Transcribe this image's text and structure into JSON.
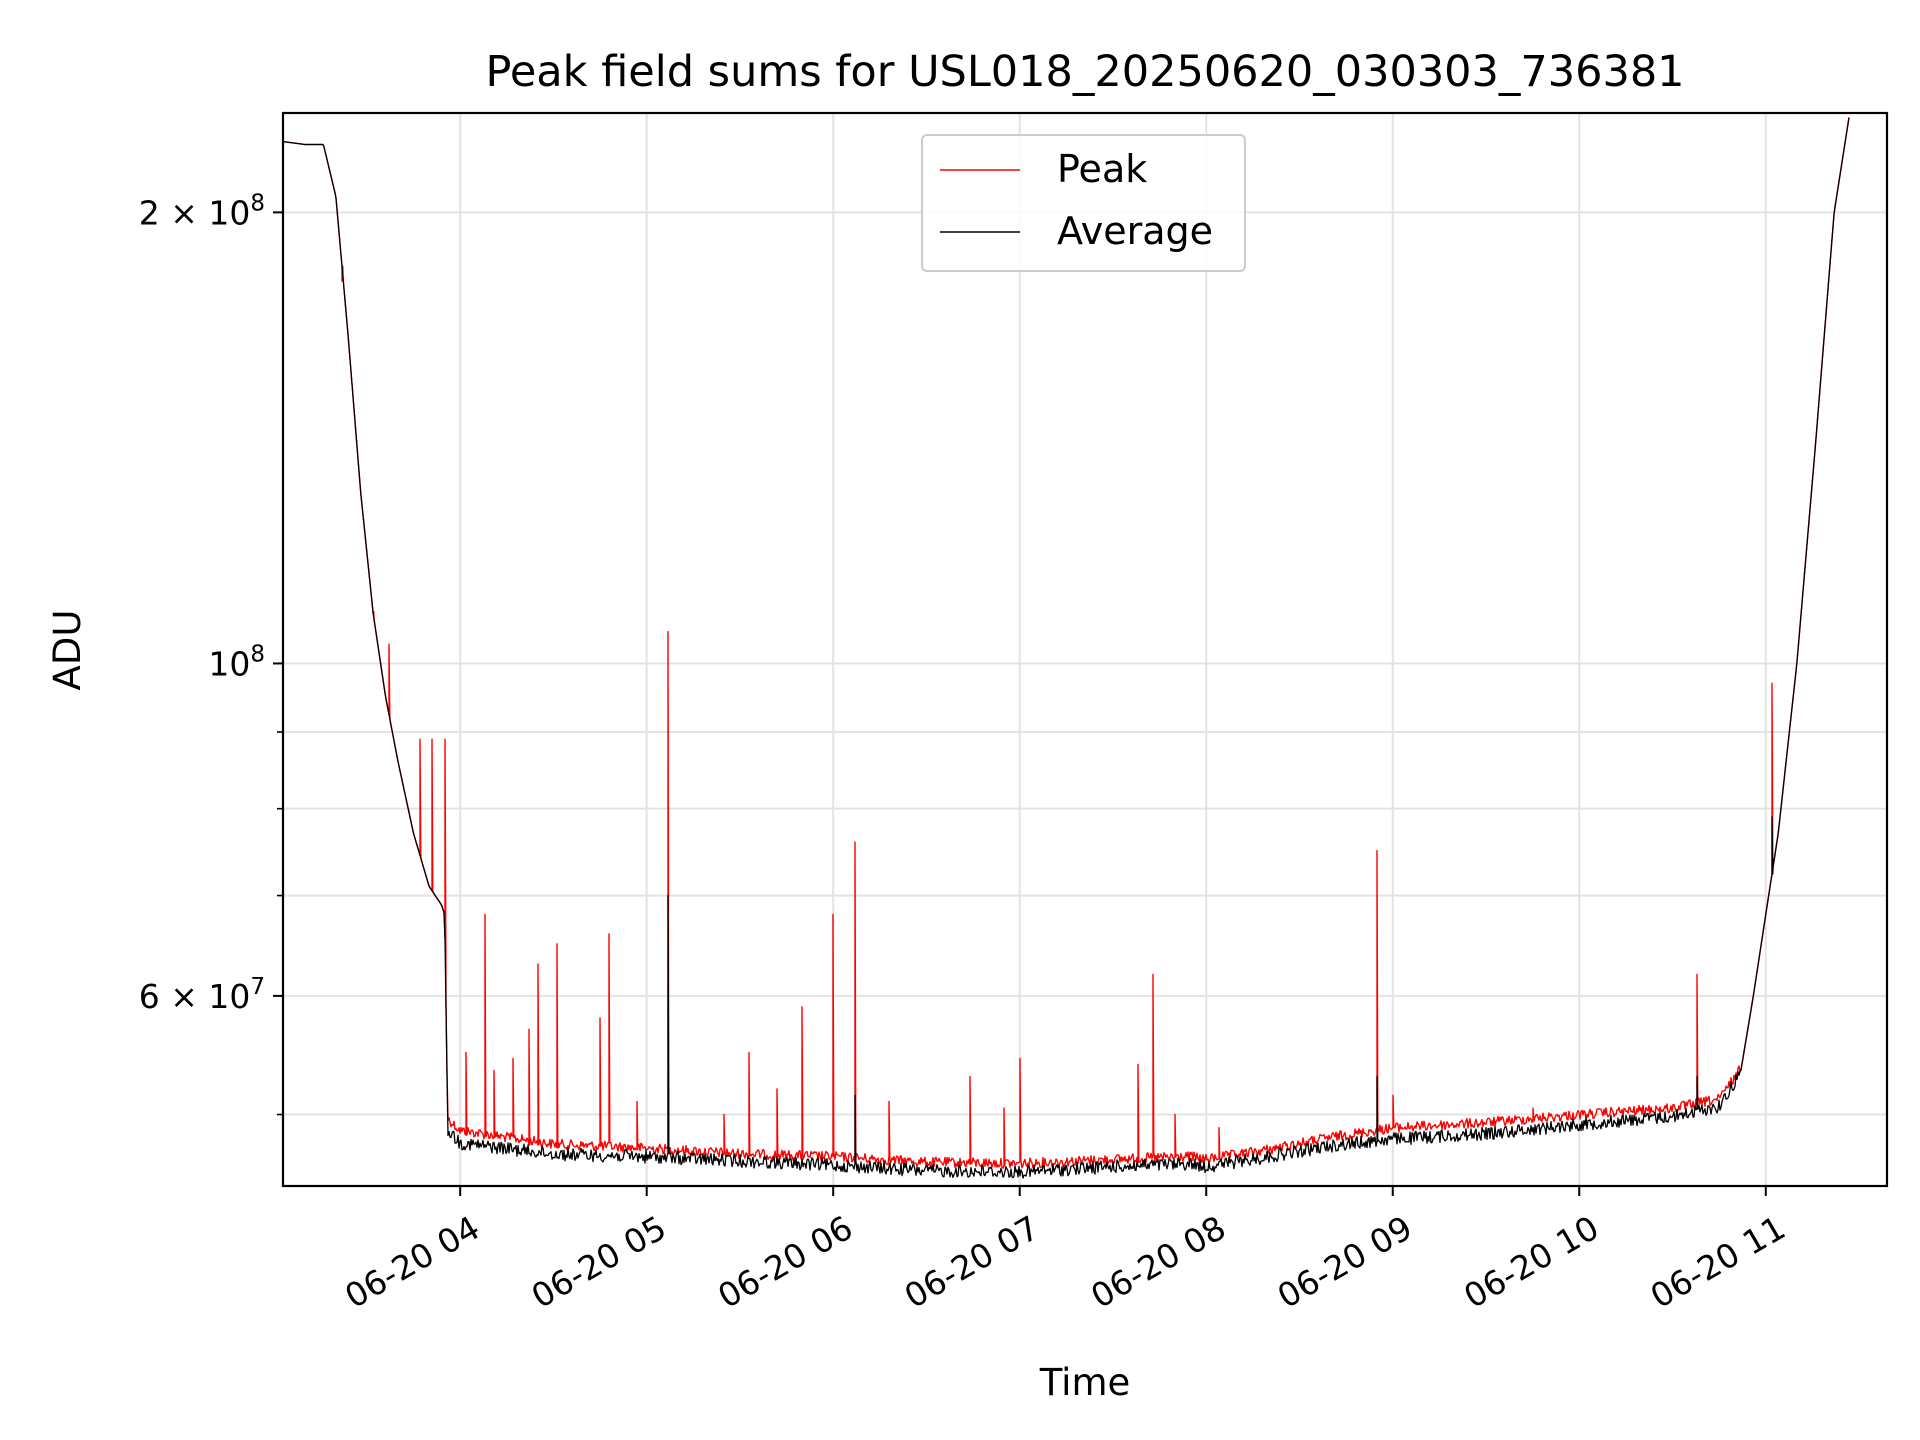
{
  "chart_data": {
    "type": "line",
    "title": "Peak field sums for USL018_20250620_030303_736381",
    "xlabel": "Time",
    "ylabel": "ADU",
    "xaxis": {
      "kind": "time",
      "start": "2025-06-20T03:03",
      "end": "2025-06-20T11:39",
      "ticks": [
        {
          "value": "2025-06-20T04:00",
          "label": "06-20 04"
        },
        {
          "value": "2025-06-20T05:00",
          "label": "06-20 05"
        },
        {
          "value": "2025-06-20T06:00",
          "label": "06-20 06"
        },
        {
          "value": "2025-06-20T07:00",
          "label": "06-20 07"
        },
        {
          "value": "2025-06-20T08:00",
          "label": "06-20 08"
        },
        {
          "value": "2025-06-20T09:00",
          "label": "06-20 09"
        },
        {
          "value": "2025-06-20T10:00",
          "label": "06-20 10"
        },
        {
          "value": "2025-06-20T11:00",
          "label": "06-20 11"
        }
      ]
    },
    "yaxis": {
      "scale": "log",
      "ylim": [
        44800000,
        233000000
      ],
      "major_ticks": [
        {
          "value": 60000000,
          "label": "6 × 10",
          "exp": "7"
        },
        {
          "value": 100000000,
          "label": "10",
          "exp": "8"
        },
        {
          "value": 200000000,
          "label": "2 × 10",
          "exp": "8"
        }
      ],
      "minor_ticks": [
        50000000,
        70000000,
        80000000,
        90000000
      ]
    },
    "grid": true,
    "legend": {
      "placement": "upper-center",
      "entries": [
        "Peak",
        "Average"
      ]
    },
    "series": [
      {
        "name": "Peak",
        "color": "#ff0000",
        "baseline": [
          [
            "2025-06-20T03:03",
            223000000
          ],
          [
            "2025-06-20T03:10",
            222000000
          ],
          [
            "2025-06-20T03:16",
            222000000
          ],
          [
            "2025-06-20T03:20",
            205000000
          ],
          [
            "2025-06-20T03:24",
            165000000
          ],
          [
            "2025-06-20T03:28",
            130000000
          ],
          [
            "2025-06-20T03:32",
            108000000
          ],
          [
            "2025-06-20T03:36",
            95000000
          ],
          [
            "2025-06-20T03:40",
            86000000
          ],
          [
            "2025-06-20T03:45",
            77000000
          ],
          [
            "2025-06-20T03:50",
            71000000
          ],
          [
            "2025-06-20T03:54",
            69000000
          ],
          [
            "2025-06-20T03:55",
            68000000
          ],
          [
            "2025-06-20T03:56",
            49500000
          ],
          [
            "2025-06-20T04:00",
            48600000
          ],
          [
            "2025-06-20T04:30",
            47600000
          ],
          [
            "2025-06-20T05:00",
            47300000
          ],
          [
            "2025-06-20T05:30",
            46900000
          ],
          [
            "2025-06-20T06:00",
            46700000
          ],
          [
            "2025-06-20T06:30",
            46300000
          ],
          [
            "2025-06-20T07:00",
            46200000
          ],
          [
            "2025-06-20T07:30",
            46500000
          ],
          [
            "2025-06-20T07:55",
            46700000
          ],
          [
            "2025-06-20T08:00",
            46500000
          ],
          [
            "2025-06-20T08:20",
            47200000
          ],
          [
            "2025-06-20T08:40",
            48100000
          ],
          [
            "2025-06-20T09:00",
            48800000
          ],
          [
            "2025-06-20T09:30",
            49200000
          ],
          [
            "2025-06-20T10:00",
            49800000
          ],
          [
            "2025-06-20T10:30",
            50300000
          ],
          [
            "2025-06-20T10:45",
            51000000
          ],
          [
            "2025-06-20T10:52",
            53500000
          ],
          [
            "2025-06-20T10:56",
            60000000
          ],
          [
            "2025-06-20T11:00",
            68000000
          ],
          [
            "2025-06-20T11:04",
            77000000
          ],
          [
            "2025-06-20T11:10",
            100000000
          ],
          [
            "2025-06-20T11:16",
            140000000
          ],
          [
            "2025-06-20T11:22",
            200000000
          ],
          [
            "2025-06-20T11:27",
            233000000
          ]
        ],
        "spikes": [
          [
            "2025-06-20T03:22",
            180000000
          ],
          [
            "2025-06-20T03:32",
            108000000
          ],
          [
            "2025-06-20T03:37",
            103000000
          ],
          [
            "2025-06-20T03:47",
            89000000
          ],
          [
            "2025-06-20T03:51",
            89000000
          ],
          [
            "2025-06-20T03:55",
            89000000
          ],
          [
            "2025-06-20T04:02",
            55000000
          ],
          [
            "2025-06-20T04:08",
            68000000
          ],
          [
            "2025-06-20T04:11",
            53500000
          ],
          [
            "2025-06-20T04:17",
            54500000
          ],
          [
            "2025-06-20T04:22",
            57000000
          ],
          [
            "2025-06-20T04:25",
            63000000
          ],
          [
            "2025-06-20T04:31",
            65000000
          ],
          [
            "2025-06-20T04:45",
            58000000
          ],
          [
            "2025-06-20T04:48",
            66000000
          ],
          [
            "2025-06-20T04:57",
            51000000
          ],
          [
            "2025-06-20T05:07",
            105000000
          ],
          [
            "2025-06-20T05:25",
            50000000
          ],
          [
            "2025-06-20T05:33",
            55000000
          ],
          [
            "2025-06-20T05:42",
            52000000
          ],
          [
            "2025-06-20T05:50",
            59000000
          ],
          [
            "2025-06-20T06:00",
            68000000
          ],
          [
            "2025-06-20T06:07",
            76000000
          ],
          [
            "2025-06-20T06:18",
            51000000
          ],
          [
            "2025-06-20T06:44",
            53000000
          ],
          [
            "2025-06-20T06:55",
            50500000
          ],
          [
            "2025-06-20T07:00",
            54500000
          ],
          [
            "2025-06-20T07:38",
            54000000
          ],
          [
            "2025-06-20T07:43",
            62000000
          ],
          [
            "2025-06-20T07:50",
            50000000
          ],
          [
            "2025-06-20T08:04",
            49000000
          ],
          [
            "2025-06-20T08:55",
            75000000
          ],
          [
            "2025-06-20T09:00",
            51500000
          ],
          [
            "2025-06-20T09:45",
            50500000
          ],
          [
            "2025-06-20T10:38",
            62000000
          ],
          [
            "2025-06-20T11:02",
            97000000
          ]
        ]
      },
      {
        "name": "Average",
        "color": "#000000",
        "baseline": [
          [
            "2025-06-20T03:03",
            223000000
          ],
          [
            "2025-06-20T03:10",
            222000000
          ],
          [
            "2025-06-20T03:16",
            222000000
          ],
          [
            "2025-06-20T03:20",
            205000000
          ],
          [
            "2025-06-20T03:24",
            165000000
          ],
          [
            "2025-06-20T03:28",
            130000000
          ],
          [
            "2025-06-20T03:32",
            108000000
          ],
          [
            "2025-06-20T03:36",
            95000000
          ],
          [
            "2025-06-20T03:40",
            86000000
          ],
          [
            "2025-06-20T03:45",
            77000000
          ],
          [
            "2025-06-20T03:50",
            71000000
          ],
          [
            "2025-06-20T03:54",
            69000000
          ],
          [
            "2025-06-20T03:55",
            68000000
          ],
          [
            "2025-06-20T03:56",
            49000000
          ],
          [
            "2025-06-20T04:00",
            48000000
          ],
          [
            "2025-06-20T04:30",
            47200000
          ],
          [
            "2025-06-20T05:00",
            47000000
          ],
          [
            "2025-06-20T05:30",
            46700000
          ],
          [
            "2025-06-20T06:00",
            46400000
          ],
          [
            "2025-06-20T06:30",
            46000000
          ],
          [
            "2025-06-20T07:00",
            45900000
          ],
          [
            "2025-06-20T07:30",
            46300000
          ],
          [
            "2025-06-20T07:55",
            46500000
          ],
          [
            "2025-06-20T08:00",
            46300000
          ],
          [
            "2025-06-20T08:20",
            47000000
          ],
          [
            "2025-06-20T08:40",
            47800000
          ],
          [
            "2025-06-20T09:00",
            48300000
          ],
          [
            "2025-06-20T09:30",
            48700000
          ],
          [
            "2025-06-20T10:00",
            49400000
          ],
          [
            "2025-06-20T10:30",
            50000000
          ],
          [
            "2025-06-20T10:45",
            50800000
          ],
          [
            "2025-06-20T10:52",
            53500000
          ],
          [
            "2025-06-20T10:56",
            60000000
          ],
          [
            "2025-06-20T11:00",
            68000000
          ],
          [
            "2025-06-20T11:04",
            77000000
          ],
          [
            "2025-06-20T11:10",
            100000000
          ],
          [
            "2025-06-20T11:16",
            140000000
          ],
          [
            "2025-06-20T11:22",
            200000000
          ],
          [
            "2025-06-20T11:27",
            233000000
          ]
        ],
        "spikes": [
          [
            "2025-06-20T05:07",
            70000000
          ],
          [
            "2025-06-20T06:07",
            51500000
          ],
          [
            "2025-06-20T08:55",
            53000000
          ],
          [
            "2025-06-20T10:38",
            53000000
          ],
          [
            "2025-06-20T11:02",
            79000000
          ]
        ]
      }
    ]
  }
}
